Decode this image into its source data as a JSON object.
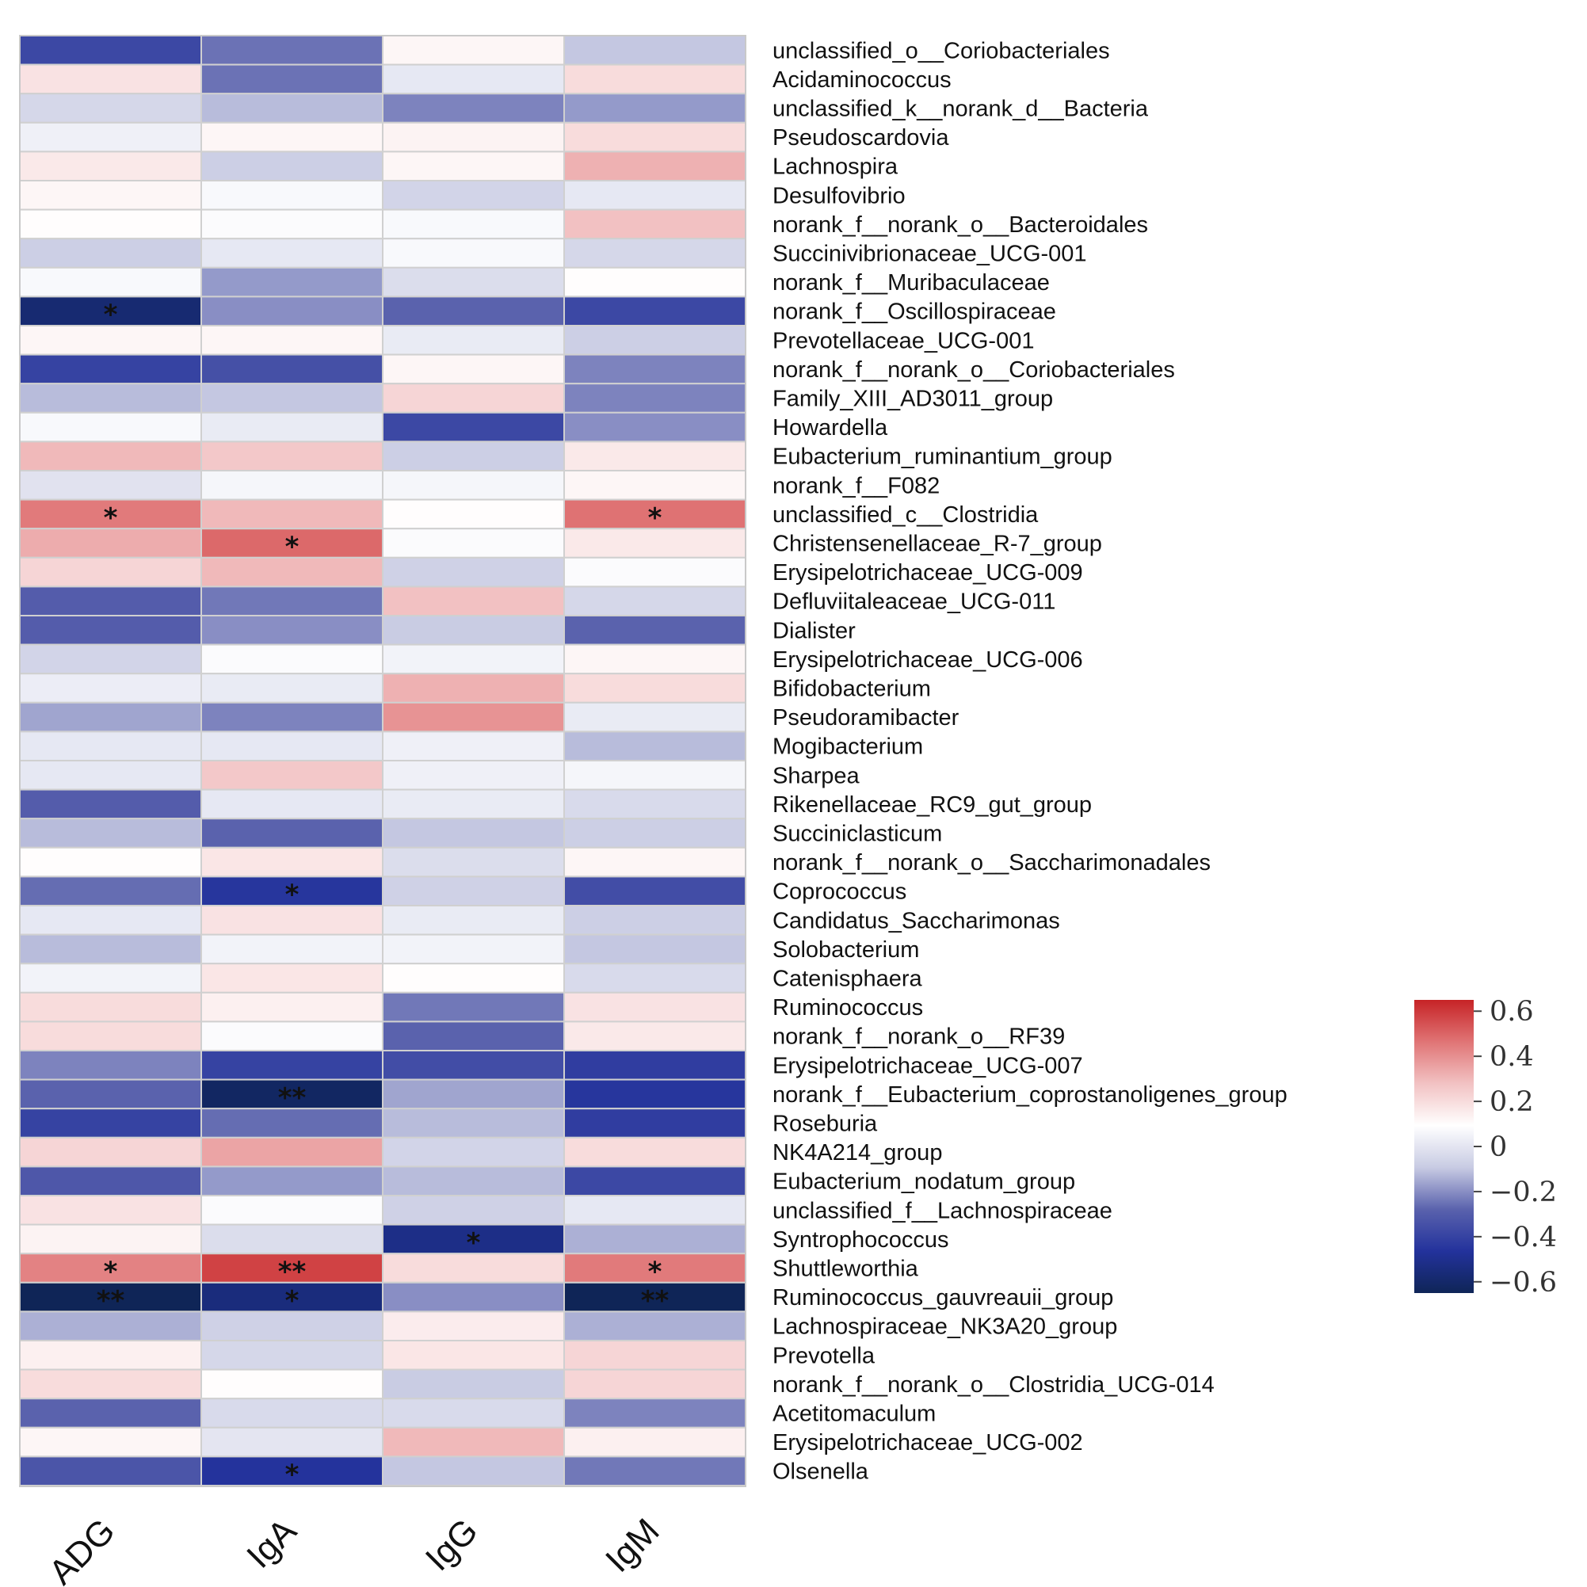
{
  "chart_data": {
    "type": "heatmap",
    "columns": [
      "ADG",
      "IgA",
      "IgG",
      "IgM"
    ],
    "rows": [
      "unclassified_o__Coriobacteriales",
      "Acidaminococcus",
      "unclassified_k__norank_d__Bacteria",
      "Pseudoscardovia",
      "Lachnospira",
      "Desulfovibrio",
      "norank_f__norank_o__Bacteroidales",
      "Succinivibrionaceae_UCG-001",
      "norank_f__Muribaculaceae",
      "norank_f__Oscillospiraceae",
      "Prevotellaceae_UCG-001",
      "norank_f__norank_o__Coriobacteriales",
      "Family_XIII_AD3011_group",
      "Howardella",
      "Eubacterium_ruminantium_group",
      "norank_f__F082",
      "unclassified_c__Clostridia",
      "Christensenellaceae_R-7_group",
      "Erysipelotrichaceae_UCG-009",
      "Defluviitaleaceae_UCG-011",
      "Dialister",
      "Erysipelotrichaceae_UCG-006",
      "Bifidobacterium",
      "Pseudoramibacter",
      "Mogibacterium",
      "Sharpea",
      "Rikenellaceae_RC9_gut_group",
      "Succiniclasticum",
      "norank_f__norank_o__Saccharimonadales",
      "Coprococcus",
      "Candidatus_Saccharimonas",
      "Solobacterium",
      "Catenisphaera",
      "Ruminococcus",
      "norank_f__norank_o__RF39",
      "Erysipelotrichaceae_UCG-007",
      "norank_f__Eubacterium_coprostanoligenes_group",
      "Roseburia",
      "NK4A214_group",
      "Eubacterium_nodatum_group",
      "unclassified_f__Lachnospiraceae",
      "Syntrophococcus",
      "Shuttleworthia",
      "Ruminococcus_gauvreauii_group",
      "Lachnospiraceae_NK3A20_group",
      "Prevotella",
      "norank_f__norank_o__Clostridia_UCG-014",
      "Acetitomaculum",
      "Erysipelotrichaceae_UCG-002",
      "Olsenella"
    ],
    "values": [
      [
        -0.38,
        -0.25,
        0.12,
        -0.1
      ],
      [
        0.18,
        -0.25,
        0.01,
        0.2
      ],
      [
        -0.05,
        -0.12,
        -0.22,
        -0.18
      ],
      [
        0.04,
        0.12,
        0.13,
        0.2
      ],
      [
        0.16,
        -0.08,
        0.12,
        0.32
      ],
      [
        0.12,
        0.07,
        -0.06,
        0.01
      ],
      [
        0.1,
        0.08,
        0.07,
        0.28
      ],
      [
        -0.08,
        0.01,
        0.07,
        -0.05
      ],
      [
        0.07,
        -0.18,
        -0.03,
        0.1
      ],
      [
        -0.58,
        -0.2,
        -0.28,
        -0.38
      ],
      [
        0.12,
        0.12,
        0.02,
        -0.08
      ],
      [
        -0.4,
        -0.35,
        0.12,
        -0.22
      ],
      [
        -0.12,
        -0.1,
        0.22,
        -0.22
      ],
      [
        0.07,
        0.02,
        -0.38,
        -0.2
      ],
      [
        0.3,
        0.26,
        -0.08,
        0.16
      ],
      [
        -0.01,
        0.06,
        0.06,
        0.12
      ],
      [
        0.45,
        0.3,
        0.1,
        0.47
      ],
      [
        0.33,
        0.49,
        0.08,
        0.16
      ],
      [
        0.22,
        0.3,
        -0.07,
        0.08
      ],
      [
        -0.3,
        -0.24,
        0.28,
        -0.05
      ],
      [
        -0.3,
        -0.2,
        -0.09,
        -0.28
      ],
      [
        -0.06,
        0.08,
        0.05,
        0.12
      ],
      [
        0.03,
        0.02,
        0.32,
        0.2
      ],
      [
        -0.16,
        -0.22,
        0.39,
        0.02
      ],
      [
        0.01,
        0.01,
        0.04,
        -0.12
      ],
      [
        0.01,
        0.26,
        0.04,
        0.06
      ],
      [
        -0.3,
        0.01,
        0.02,
        -0.04
      ],
      [
        -0.12,
        -0.28,
        -0.1,
        -0.08
      ],
      [
        0.1,
        0.17,
        -0.03,
        0.12
      ],
      [
        -0.26,
        -0.45,
        -0.07,
        -0.36
      ],
      [
        0.01,
        0.18,
        0.02,
        -0.08
      ],
      [
        -0.12,
        0.05,
        0.05,
        -0.1
      ],
      [
        0.05,
        0.17,
        0.1,
        -0.04
      ],
      [
        0.2,
        0.14,
        -0.24,
        0.18
      ],
      [
        0.2,
        0.08,
        -0.28,
        0.16
      ],
      [
        -0.22,
        -0.4,
        -0.36,
        -0.42
      ],
      [
        -0.28,
        -0.62,
        -0.16,
        -0.45
      ],
      [
        -0.4,
        -0.26,
        -0.12,
        -0.42
      ],
      [
        0.22,
        0.35,
        -0.06,
        0.2
      ],
      [
        -0.32,
        -0.18,
        -0.12,
        -0.38
      ],
      [
        0.18,
        0.08,
        -0.07,
        0.01
      ],
      [
        0.13,
        -0.03,
        -0.52,
        -0.14
      ],
      [
        0.43,
        0.58,
        0.2,
        0.45
      ],
      [
        -0.65,
        -0.55,
        -0.2,
        -0.65
      ],
      [
        -0.14,
        -0.07,
        0.15,
        -0.14
      ],
      [
        0.14,
        -0.05,
        0.17,
        0.22
      ],
      [
        0.2,
        0.1,
        -0.09,
        0.22
      ],
      [
        -0.28,
        -0.04,
        -0.04,
        -0.22
      ],
      [
        0.12,
        0.0,
        0.3,
        0.14
      ],
      [
        -0.33,
        -0.46,
        -0.1,
        -0.24
      ]
    ],
    "significance": [
      [
        "",
        "",
        "",
        ""
      ],
      [
        "",
        "",
        "",
        ""
      ],
      [
        "",
        "",
        "",
        ""
      ],
      [
        "",
        "",
        "",
        ""
      ],
      [
        "",
        "",
        "",
        ""
      ],
      [
        "",
        "",
        "",
        ""
      ],
      [
        "",
        "",
        "",
        ""
      ],
      [
        "",
        "",
        "",
        ""
      ],
      [
        "",
        "",
        "",
        ""
      ],
      [
        "*",
        "",
        "",
        ""
      ],
      [
        "",
        "",
        "",
        ""
      ],
      [
        "",
        "",
        "",
        ""
      ],
      [
        "",
        "",
        "",
        ""
      ],
      [
        "",
        "",
        "",
        ""
      ],
      [
        "",
        "",
        "",
        ""
      ],
      [
        "",
        "",
        "",
        ""
      ],
      [
        "*",
        "",
        "",
        "*"
      ],
      [
        "",
        "*",
        "",
        ""
      ],
      [
        "",
        "",
        "",
        ""
      ],
      [
        "",
        "",
        "",
        ""
      ],
      [
        "",
        "",
        "",
        ""
      ],
      [
        "",
        "",
        "",
        ""
      ],
      [
        "",
        "",
        "",
        ""
      ],
      [
        "",
        "",
        "",
        ""
      ],
      [
        "",
        "",
        "",
        ""
      ],
      [
        "",
        "",
        "",
        ""
      ],
      [
        "",
        "",
        "",
        ""
      ],
      [
        "",
        "",
        "",
        ""
      ],
      [
        "",
        "",
        "",
        ""
      ],
      [
        "",
        "*",
        "",
        ""
      ],
      [
        "",
        "",
        "",
        ""
      ],
      [
        "",
        "",
        "",
        ""
      ],
      [
        "",
        "",
        "",
        ""
      ],
      [
        "",
        "",
        "",
        ""
      ],
      [
        "",
        "",
        "",
        ""
      ],
      [
        "",
        "",
        "",
        ""
      ],
      [
        "",
        "**",
        "",
        ""
      ],
      [
        "",
        "",
        "",
        ""
      ],
      [
        "",
        "",
        "",
        ""
      ],
      [
        "",
        "",
        "",
        ""
      ],
      [
        "",
        "",
        "",
        ""
      ],
      [
        "",
        "",
        "*",
        ""
      ],
      [
        "*",
        "**",
        "",
        "*"
      ],
      [
        "**",
        "*",
        "",
        "**"
      ],
      [
        "",
        "",
        "",
        ""
      ],
      [
        "",
        "",
        "",
        ""
      ],
      [
        "",
        "",
        "",
        ""
      ],
      [
        "",
        "",
        "",
        ""
      ],
      [
        "",
        "",
        "",
        ""
      ],
      [
        "",
        "*",
        "",
        ""
      ]
    ],
    "colorscale": {
      "min": -0.65,
      "max": 0.65,
      "ticks": [
        0.6,
        0.4,
        0.2,
        0,
        -0.2,
        -0.4,
        -0.6
      ],
      "tick_labels": [
        "0.6",
        "0.4",
        "0.2",
        "0",
        "−0.2",
        "−0.4",
        "−0.6"
      ],
      "colors": [
        "#0f2557",
        "#23329c",
        "#5a62ad",
        "#c8cbe3",
        "#ffffff",
        "#f2c2c3",
        "#e07475",
        "#c62326"
      ]
    },
    "legend_position": "right"
  }
}
